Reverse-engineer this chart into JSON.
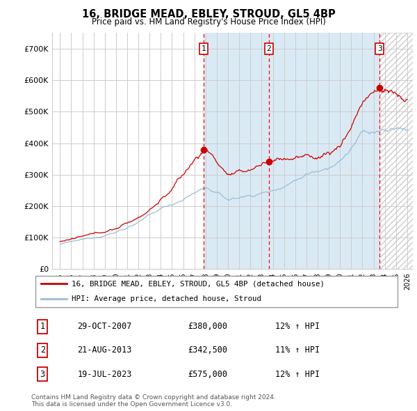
{
  "title": "16, BRIDGE MEAD, EBLEY, STROUD, GL5 4BP",
  "subtitle": "Price paid vs. HM Land Registry's House Price Index (HPI)",
  "ylim": [
    0,
    750000
  ],
  "yticks": [
    0,
    100000,
    200000,
    300000,
    400000,
    500000,
    600000,
    700000
  ],
  "ytick_labels": [
    "£0",
    "£100K",
    "£200K",
    "£300K",
    "£400K",
    "£500K",
    "£600K",
    "£700K"
  ],
  "x_start_year": 1995,
  "x_end_year": 2026,
  "sale_date_years": [
    2007.833,
    2013.638,
    2023.542
  ],
  "sale_prices": [
    380000,
    342500,
    575000
  ],
  "sale_labels": [
    "1",
    "2",
    "3"
  ],
  "sale_hpi_pct": [
    "12%",
    "11%",
    "12%"
  ],
  "sale_hpi_dir": "↑",
  "sale_date_strs": [
    "29-OCT-2007",
    "21-AUG-2013",
    "19-JUL-2023"
  ],
  "sale_price_strs": [
    "£380,000",
    "£342,500",
    "£575,000"
  ],
  "hpi_color": "#9bbdd4",
  "price_color": "#cc0000",
  "shade_color": "#daeaf5",
  "hatch_color": "#cccccc",
  "grid_color": "#cccccc",
  "background_color": "#ffffff",
  "footer": "Contains HM Land Registry data © Crown copyright and database right 2024.\nThis data is licensed under the Open Government Licence v3.0.",
  "legend_line1": "16, BRIDGE MEAD, EBLEY, STROUD, GL5 4BP (detached house)",
  "legend_line2": "HPI: Average price, detached house, Stroud"
}
